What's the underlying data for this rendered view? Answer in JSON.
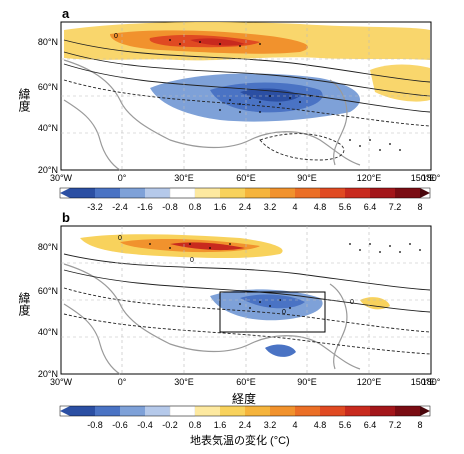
{
  "panels": [
    {
      "letter": "a",
      "ylabel": "緯度",
      "lat_ticks": [
        "80°N",
        "60°N",
        "40°N",
        "20°N"
      ],
      "lon_ticks": [
        "30°W",
        "0°",
        "30°E",
        "60°E",
        "90°E",
        "120°E",
        "150°E",
        "180°"
      ],
      "colorbar_ticks": [
        "-3.2",
        "-2.4",
        "-1.6",
        "-0.8",
        "0.8",
        "1.6",
        "2.4",
        "3.2",
        "4",
        "4.8",
        "5.6",
        "6.4",
        "7.2",
        "8"
      ]
    },
    {
      "letter": "b",
      "ylabel": "緯度",
      "xlabel": "経度",
      "lat_ticks": [
        "80°N",
        "60°N",
        "40°N",
        "20°N"
      ],
      "lon_ticks": [
        "30°W",
        "0°",
        "30°E",
        "60°E",
        "90°E",
        "120°E",
        "150°E",
        "180°"
      ],
      "colorbar_ticks": [
        "-0.8",
        "-0.6",
        "-0.4",
        "-0.2",
        "0.8",
        "1.6",
        "2.4",
        "3.2",
        "4",
        "4.8",
        "5.6",
        "6.4",
        "7.2",
        "8"
      ],
      "colorbar_label": "地表気温の変化 (°C)"
    }
  ],
  "colors": [
    "#2b4fa3",
    "#4a73c4",
    "#7ea1d8",
    "#b5c9ea",
    "#ffffff",
    "#fde9a0",
    "#f8d25c",
    "#f5b43c",
    "#f1922d",
    "#eb6f26",
    "#e04a22",
    "#c82a1e",
    "#a3161a",
    "#7a0c13",
    "#4a050b"
  ],
  "contour_labels": [
    "0",
    "0",
    "0",
    "0",
    "0"
  ]
}
